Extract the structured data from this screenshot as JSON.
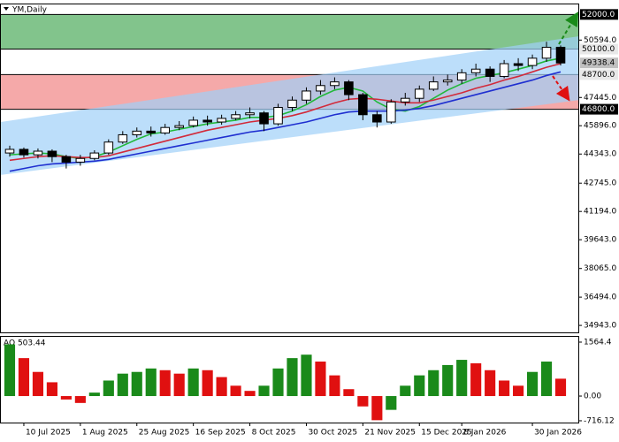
{
  "chart_data": {
    "type": "candlestick",
    "title": "YM,Daily",
    "categories": [
      null,
      "10 Jul 2025",
      null,
      null,
      null,
      "1 Aug 2025",
      null,
      null,
      null,
      "25 Aug 2025",
      null,
      null,
      null,
      "16 Sep 2025",
      null,
      null,
      null,
      "8 Oct 2025",
      null,
      null,
      null,
      "30 Oct 2025",
      null,
      null,
      null,
      "21 Nov 2025",
      null,
      null,
      null,
      "15 Dec 2025",
      null,
      null,
      "8 Jan 2026",
      null,
      null,
      null,
      null,
      "30 Jan 2026",
      null,
      null
    ],
    "open": [
      44400,
      44600,
      44300,
      44500,
      44200,
      43900,
      44100,
      44400,
      45000,
      45400,
      45600,
      45500,
      45800,
      45900,
      46200,
      46100,
      46300,
      46500,
      46600,
      46000,
      46900,
      47300,
      47800,
      48100,
      48300,
      47600,
      46500,
      46100,
      47200,
      47400,
      47900,
      48300,
      48400,
      48800,
      49000,
      48600,
      49300,
      49200,
      49600,
      50200
    ],
    "high": [
      44800,
      44700,
      44650,
      44600,
      44300,
      44300,
      44550,
      45150,
      45600,
      45800,
      45850,
      46000,
      46150,
      46400,
      46450,
      46500,
      46700,
      46900,
      46700,
      47100,
      47500,
      48000,
      48400,
      48550,
      48400,
      47700,
      46700,
      47350,
      47700,
      48100,
      48600,
      48700,
      49000,
      49300,
      49150,
      49500,
      49600,
      49800,
      50500,
      50300
    ],
    "low": [
      44200,
      44150,
      44100,
      43900,
      43550,
      43700,
      44000,
      44300,
      44900,
      45250,
      45300,
      45400,
      45650,
      45800,
      45900,
      45950,
      46200,
      46300,
      45600,
      45900,
      46700,
      47100,
      47600,
      47900,
      47300,
      46200,
      45800,
      46000,
      47000,
      47200,
      47800,
      48100,
      48200,
      48600,
      48300,
      48500,
      48900,
      49000,
      49400,
      49200
    ],
    "close": [
      44600,
      44300,
      44500,
      44200,
      43900,
      44100,
      44400,
      45000,
      45400,
      45600,
      45500,
      45800,
      45900,
      46200,
      46100,
      46300,
      46500,
      46600,
      46000,
      46900,
      47300,
      47800,
      48100,
      48300,
      47600,
      46500,
      46100,
      47200,
      47400,
      47900,
      48300,
      48400,
      48800,
      49000,
      48600,
      49300,
      49200,
      49600,
      50200,
      49338.4
    ],
    "candle_color": "#000000",
    "moving_averages": [
      {
        "color": "#22b83a",
        "values": [
          44300,
          44350,
          44400,
          44350,
          44200,
          44100,
          44200,
          44450,
          44800,
          45150,
          45450,
          45550,
          45700,
          45850,
          46000,
          46100,
          46200,
          46350,
          46350,
          46450,
          46700,
          47050,
          47500,
          47850,
          48000,
          47800,
          47200,
          46800,
          46700,
          46950,
          47400,
          47850,
          48200,
          48500,
          48650,
          48800,
          49000,
          49200,
          49450,
          49600
        ]
      },
      {
        "color": "#d22a3a",
        "values": [
          44000,
          44100,
          44200,
          44250,
          44200,
          44150,
          44150,
          44250,
          44450,
          44650,
          44850,
          45050,
          45250,
          45450,
          45650,
          45800,
          45950,
          46100,
          46200,
          46300,
          46450,
          46650,
          46900,
          47150,
          47350,
          47400,
          47350,
          47250,
          47150,
          47150,
          47300,
          47500,
          47700,
          47950,
          48150,
          48400,
          48600,
          48850,
          49100,
          49300
        ]
      },
      {
        "color": "#1f2fd0",
        "values": [
          43400,
          43550,
          43700,
          43800,
          43850,
          43900,
          43950,
          44050,
          44200,
          44350,
          44500,
          44650,
          44800,
          44950,
          45100,
          45250,
          45400,
          45550,
          45650,
          45800,
          45950,
          46100,
          46300,
          46500,
          46650,
          46700,
          46700,
          46700,
          46750,
          46850,
          47000,
          47200,
          47400,
          47600,
          47800,
          48000,
          48200,
          48400,
          48650,
          48850
        ]
      }
    ],
    "channel": {
      "upper": [
        46100,
        50800
      ],
      "lower": [
        43200,
        47300
      ],
      "color": "#9fd0f8"
    },
    "zones": [
      {
        "from": 50100,
        "to": 52000,
        "color": "#6cba78"
      },
      {
        "from": 46800,
        "to": 48700,
        "color": "#f39a9a"
      }
    ],
    "ylim": [
      34560,
      52550
    ],
    "yticks": [
      {
        "value": 34943,
        "label": "34943.0"
      },
      {
        "value": 36494,
        "label": "36494.0"
      },
      {
        "value": 38065,
        "label": "38065.0"
      },
      {
        "value": 39643,
        "label": "39643.0"
      },
      {
        "value": 41194,
        "label": "41194.0"
      },
      {
        "value": 42745,
        "label": "42745.0"
      },
      {
        "value": 44343,
        "label": "44343.0"
      },
      {
        "value": 45896,
        "label": "45896.0"
      },
      {
        "value": 47445,
        "label": "47445.0"
      },
      {
        "value": 50594,
        "label": "50594.0"
      }
    ],
    "price_labels": [
      {
        "value": 52000,
        "label": "52000.0",
        "bg": "#000000",
        "fg": "#ffffff"
      },
      {
        "value": 50100,
        "label": "50100.0",
        "bg": "#e8e8e8",
        "fg": "#000000"
      },
      {
        "value": 49338.4,
        "label": "49338.4",
        "bg": "#c0c0c0",
        "fg": "#000000"
      },
      {
        "value": 48700,
        "label": "48700.0",
        "bg": "#e8e8e8",
        "fg": "#000000"
      },
      {
        "value": 46800,
        "label": "46800.0",
        "bg": "#000000",
        "fg": "#ffffff"
      }
    ],
    "oscillator": {
      "title": "AO 503.44",
      "values": [
        1500,
        1100,
        700,
        400,
        -100,
        -200,
        100,
        450,
        650,
        700,
        800,
        750,
        650,
        800,
        750,
        550,
        300,
        150,
        300,
        800,
        1100,
        1200,
        1000,
        600,
        200,
        -300,
        -700,
        -400,
        300,
        600,
        750,
        900,
        1050,
        950,
        750,
        450,
        300,
        700,
        1000,
        503.44
      ],
      "up_color": "#1a8a1a",
      "down_color": "#e01010",
      "ylim": [
        -768,
        1718
      ],
      "yticks": [
        -716.12,
        {
          "value": 0,
          "label": "0.00"
        },
        1564.4
      ]
    }
  }
}
